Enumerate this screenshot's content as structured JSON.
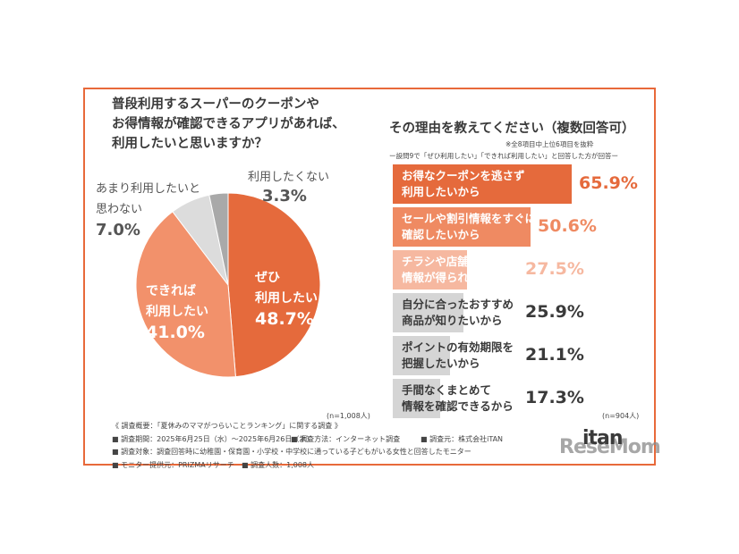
{
  "pie_question": [
    "普段利用するスーパーのクーポンや",
    "お得情報が確認できるアプリがあれば、",
    "利用したいと思いますか？"
  ],
  "bar_question": "その理由を教えてください（複数回答可）",
  "bar_note1": "※全8項目中上位6項目を抜粋",
  "bar_note2": "ー設問9で「ぜひ利用したい」「できれば利用したい」と回答した方が回答ー",
  "pie_n": "(n=1,008人)",
  "bar_n": "(n=904人)",
  "notes": {
    "title": "《 調査概要：「夏休みのママがつらいことランキング」に関する調査 》",
    "period": "■ 調査期間：2025年6月25日（水）～2025年6月26日（木）",
    "method": "■ 調査方法：インターネット調査",
    "org": "■ 調査元：株式会社iTAN",
    "target": "■ 調査対象：調査回答時に幼稚園・保育園・小学校・中学校に通っている子どもがいる女性と回答したモニター",
    "provider": "■ モニター提供元：PRIZMAリサーチ",
    "count": "■ 調査人数：1,008人"
  },
  "brand": {
    "back": "ReseMom",
    "front": "itan"
  },
  "chart_data": [
    {
      "type": "pie",
      "title": "普段利用するスーパーのクーポンやお得情報が確認できるアプリがあれば、利用したいと思いますか？",
      "slices": [
        {
          "lines": [
            "ぜひ",
            "利用したい"
          ],
          "value": 48.7,
          "value_label": "48.7%",
          "color": "#e56a3c",
          "text_color": "#ffffff"
        },
        {
          "lines": [
            "できれば",
            "利用したい"
          ],
          "value": 41.0,
          "value_label": "41.0%",
          "color": "#f2916b",
          "text_color": "#ffffff"
        },
        {
          "lines": [
            "あまり利用したいと",
            "思わない"
          ],
          "value": 7.0,
          "value_label": "7.0%",
          "color": "#dcdcdc",
          "text_color": "#555555"
        },
        {
          "lines": [
            "利用したくない"
          ],
          "value": 3.3,
          "value_label": "3.3%",
          "color": "#a9a9a9",
          "text_color": "#555555"
        }
      ]
    },
    {
      "type": "bar",
      "orientation": "horizontal",
      "title": "その理由を教えてください（複数回答可）",
      "xlim": [
        0,
        70
      ],
      "bars": [
        {
          "lines": [
            "お得なクーポンを逃さず",
            "利用したいから"
          ],
          "value": 65.9,
          "value_label": "65.9%",
          "color": "#e56a3c",
          "label_color": "#ffffff",
          "value_color": "#e56a3c"
        },
        {
          "lines": [
            "セールや割引情報をすぐに",
            "確認したいから"
          ],
          "value": 50.6,
          "value_label": "50.6%",
          "color": "#ef8a62",
          "label_color": "#ffffff",
          "value_color": "#ef8a62"
        },
        {
          "lines": [
            "チラシや店舗に行かなくても",
            "情報が得られるから"
          ],
          "value": 27.5,
          "value_label": "27.5%",
          "color": "#f6b8a0",
          "label_color": "#ffffff",
          "value_color": "#f6b8a0"
        },
        {
          "lines": [
            "自分に合ったおすすめ",
            "商品が知りたいから"
          ],
          "value": 25.9,
          "value_label": "25.9%",
          "color": "#d5d5d5",
          "label_color": "#3a3a3a",
          "value_color": "#3a3a3a"
        },
        {
          "lines": [
            "ポイントの有効期限を",
            "把握したいから"
          ],
          "value": 21.1,
          "value_label": "21.1%",
          "color": "#d5d5d5",
          "label_color": "#3a3a3a",
          "value_color": "#3a3a3a"
        },
        {
          "lines": [
            "手間なくまとめて",
            "情報を確認できるから"
          ],
          "value": 17.3,
          "value_label": "17.3%",
          "color": "#d5d5d5",
          "label_color": "#3a3a3a",
          "value_color": "#3a3a3a"
        }
      ]
    }
  ]
}
